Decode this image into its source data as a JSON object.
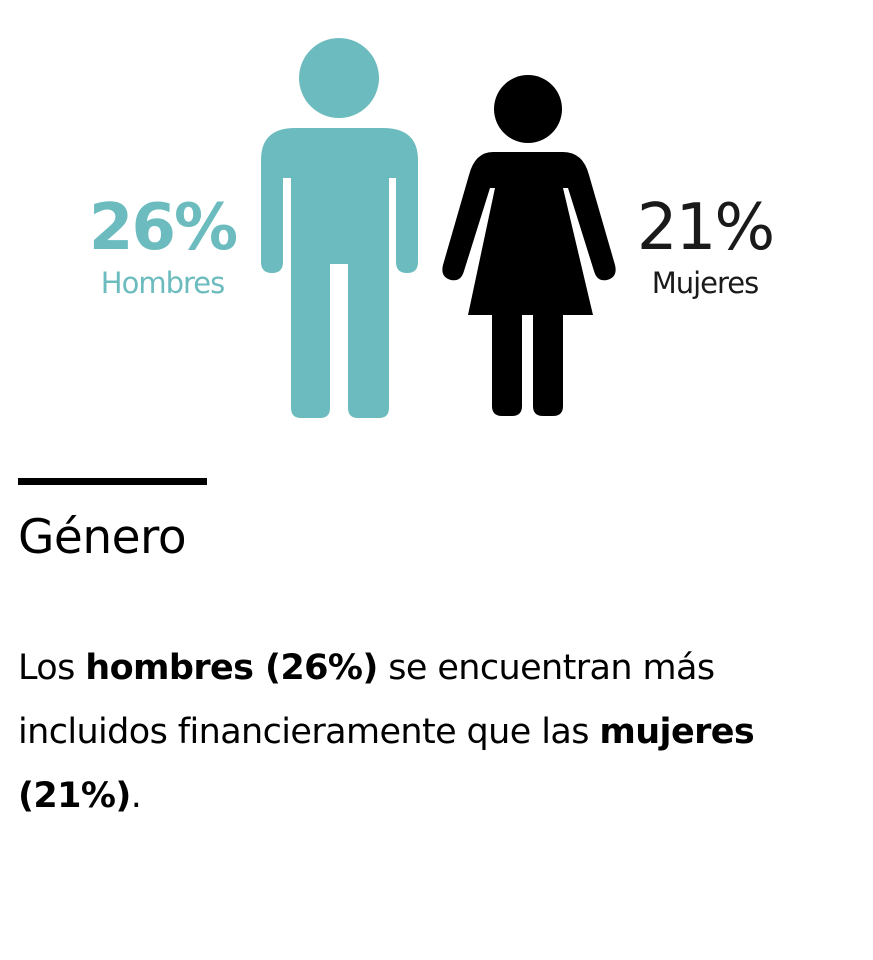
{
  "colors": {
    "men": "#6cbcbf",
    "women": "#000000",
    "text": "#000000"
  },
  "figure": {
    "men": {
      "value": "26%",
      "label": "Hombres",
      "icon": "man-icon"
    },
    "women": {
      "value": "21%",
      "label": "Mujeres",
      "icon": "woman-icon"
    }
  },
  "section": {
    "title": "Género"
  },
  "description": {
    "part1": "Los ",
    "bold1": "hombres (26%)",
    "part2": " se encuentran más incluidos financieramente que las ",
    "bold2": "mujeres (21%)",
    "part3": "."
  }
}
